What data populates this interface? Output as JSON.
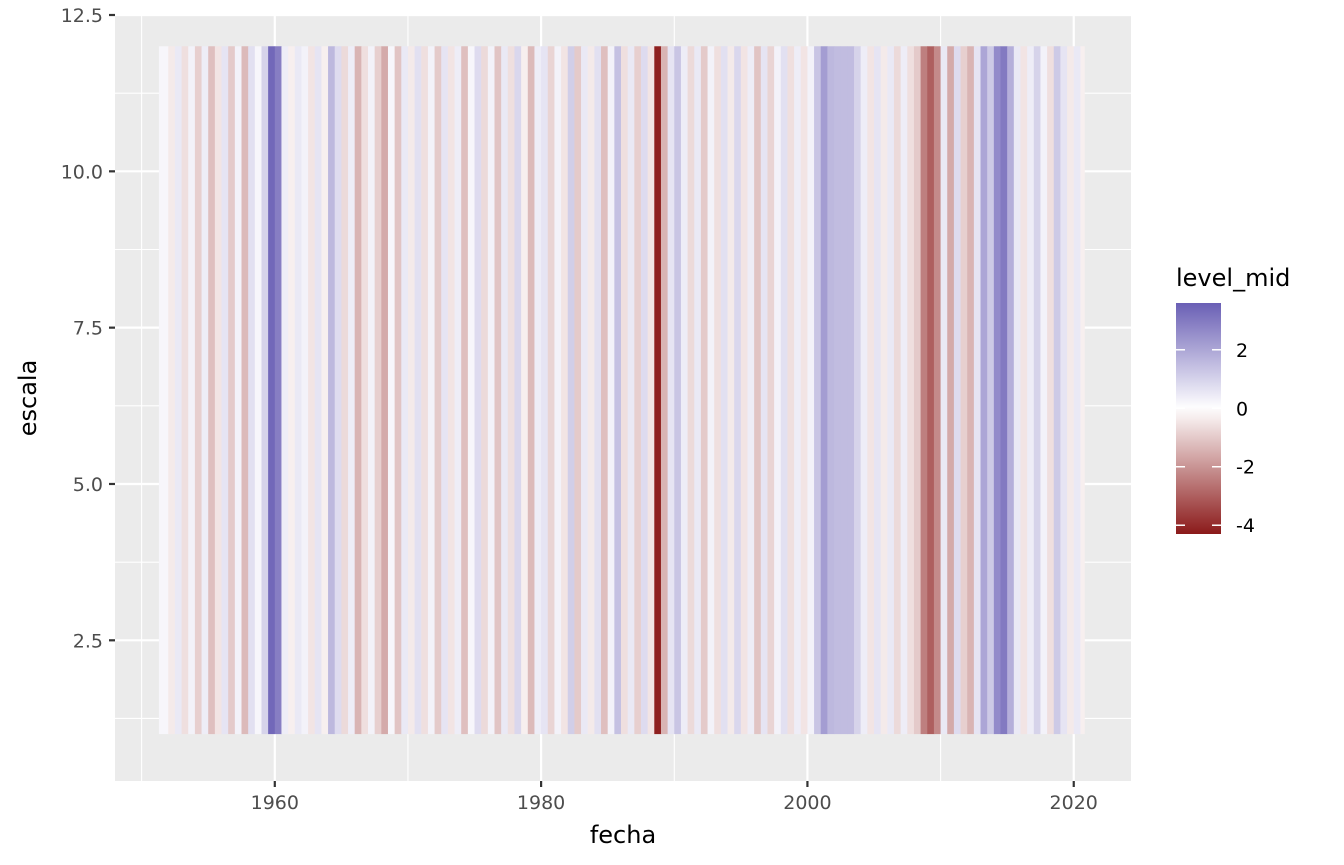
{
  "chart_data": {
    "type": "heatmap",
    "title": "",
    "xlabel": "fecha",
    "ylabel": "escala",
    "xlim": [
      1948.0,
      2024.3
    ],
    "ylim": [
      0.25,
      12.5
    ],
    "x_ticks": [
      {
        "value": 1960,
        "label": "1960"
      },
      {
        "value": 1980,
        "label": "1980"
      },
      {
        "value": 2000,
        "label": "2000"
      },
      {
        "value": 2020,
        "label": "2020"
      }
    ],
    "y_ticks": [
      {
        "value": 2.5,
        "label": "2.5"
      },
      {
        "value": 5.0,
        "label": "5.0"
      },
      {
        "value": 7.5,
        "label": "7.5"
      },
      {
        "value": 10.0,
        "label": "10.0"
      },
      {
        "value": 12.5,
        "label": "12.5"
      }
    ],
    "grid": true,
    "x_range_data": [
      1951.3,
      2020.8
    ],
    "y_range_data": [
      1.0,
      12.0
    ],
    "legend": {
      "title": "level_mid",
      "position": "right",
      "range": [
        -4.3,
        3.6
      ],
      "ticks": [
        {
          "value": 2,
          "label": "2"
        },
        {
          "value": 0,
          "label": "0"
        },
        {
          "value": -2,
          "label": "-2"
        },
        {
          "value": -4,
          "label": "-4"
        }
      ],
      "colors": {
        "low": "#8b1a1a",
        "mid": "#ffffff",
        "high": "#6a5fb5"
      }
    },
    "bands": [
      {
        "x": 1951.3,
        "v": 0.2
      },
      {
        "x": 1952.0,
        "v": -0.4
      },
      {
        "x": 1952.5,
        "v": 0.5
      },
      {
        "x": 1953.0,
        "v": -0.6
      },
      {
        "x": 1953.5,
        "v": 0.3
      },
      {
        "x": 1954.0,
        "v": -0.9
      },
      {
        "x": 1954.5,
        "v": 0.4
      },
      {
        "x": 1955.0,
        "v": -1.2
      },
      {
        "x": 1955.5,
        "v": -0.5
      },
      {
        "x": 1956.0,
        "v": 0.6
      },
      {
        "x": 1956.5,
        "v": -1.0
      },
      {
        "x": 1957.0,
        "v": 0.3
      },
      {
        "x": 1957.5,
        "v": -1.3
      },
      {
        "x": 1958.0,
        "v": 0.7
      },
      {
        "x": 1958.5,
        "v": 0.2
      },
      {
        "x": 1959.0,
        "v": 1.0
      },
      {
        "x": 1959.5,
        "v": 3.4
      },
      {
        "x": 1960.0,
        "v": 2.9
      },
      {
        "x": 1960.5,
        "v": 0.4
      },
      {
        "x": 1961.0,
        "v": -0.3
      },
      {
        "x": 1961.5,
        "v": 0.5
      },
      {
        "x": 1962.0,
        "v": 0.3
      },
      {
        "x": 1962.5,
        "v": -0.5
      },
      {
        "x": 1963.0,
        "v": 0.6
      },
      {
        "x": 1963.5,
        "v": -0.3
      },
      {
        "x": 1964.0,
        "v": 1.6
      },
      {
        "x": 1964.5,
        "v": 0.8
      },
      {
        "x": 1965.0,
        "v": -0.7
      },
      {
        "x": 1965.5,
        "v": 0.4
      },
      {
        "x": 1966.0,
        "v": -1.4
      },
      {
        "x": 1966.5,
        "v": -0.6
      },
      {
        "x": 1967.0,
        "v": 0.3
      },
      {
        "x": 1967.5,
        "v": -0.9
      },
      {
        "x": 1968.0,
        "v": -1.6
      },
      {
        "x": 1968.5,
        "v": 0.2
      },
      {
        "x": 1969.0,
        "v": -1.1
      },
      {
        "x": 1969.5,
        "v": 0.5
      },
      {
        "x": 1970.0,
        "v": -0.4
      },
      {
        "x": 1970.5,
        "v": 0.7
      },
      {
        "x": 1971.0,
        "v": -0.6
      },
      {
        "x": 1971.5,
        "v": 0.3
      },
      {
        "x": 1972.0,
        "v": -1.0
      },
      {
        "x": 1972.5,
        "v": 0.6
      },
      {
        "x": 1973.0,
        "v": -0.5
      },
      {
        "x": 1973.5,
        "v": 0.4
      },
      {
        "x": 1974.0,
        "v": -1.2
      },
      {
        "x": 1974.5,
        "v": 0.2
      },
      {
        "x": 1975.0,
        "v": 0.8
      },
      {
        "x": 1975.5,
        "v": -0.7
      },
      {
        "x": 1976.0,
        "v": 0.3
      },
      {
        "x": 1976.5,
        "v": -1.1
      },
      {
        "x": 1977.0,
        "v": 0.5
      },
      {
        "x": 1977.5,
        "v": -0.6
      },
      {
        "x": 1978.0,
        "v": 0.9
      },
      {
        "x": 1978.5,
        "v": -0.3
      },
      {
        "x": 1979.0,
        "v": -1.3
      },
      {
        "x": 1979.5,
        "v": 0.4
      },
      {
        "x": 1980.0,
        "v": 0.6
      },
      {
        "x": 1980.5,
        "v": -0.8
      },
      {
        "x": 1981.0,
        "v": 0.3
      },
      {
        "x": 1981.5,
        "v": -0.5
      },
      {
        "x": 1982.0,
        "v": 1.1
      },
      {
        "x": 1982.5,
        "v": -1.0
      },
      {
        "x": 1983.0,
        "v": 0.5
      },
      {
        "x": 1983.5,
        "v": -0.4
      },
      {
        "x": 1984.0,
        "v": 0.7
      },
      {
        "x": 1984.5,
        "v": -1.2
      },
      {
        "x": 1985.0,
        "v": 0.3
      },
      {
        "x": 1985.5,
        "v": 1.4
      },
      {
        "x": 1986.0,
        "v": -0.6
      },
      {
        "x": 1986.5,
        "v": 0.5
      },
      {
        "x": 1987.0,
        "v": -0.9
      },
      {
        "x": 1987.5,
        "v": 0.8
      },
      {
        "x": 1988.0,
        "v": -0.5
      },
      {
        "x": 1988.5,
        "v": -4.2
      },
      {
        "x": 1989.0,
        "v": -1.4
      },
      {
        "x": 1989.5,
        "v": 0.6
      },
      {
        "x": 1990.0,
        "v": 1.3
      },
      {
        "x": 1990.5,
        "v": 0.4
      },
      {
        "x": 1991.0,
        "v": -0.7
      },
      {
        "x": 1991.5,
        "v": 0.5
      },
      {
        "x": 1992.0,
        "v": -1.0
      },
      {
        "x": 1992.5,
        "v": 0.3
      },
      {
        "x": 1993.0,
        "v": -0.6
      },
      {
        "x": 1993.5,
        "v": 0.7
      },
      {
        "x": 1994.0,
        "v": -0.4
      },
      {
        "x": 1994.5,
        "v": 0.9
      },
      {
        "x": 1995.0,
        "v": -0.5
      },
      {
        "x": 1995.5,
        "v": 0.4
      },
      {
        "x": 1996.0,
        "v": -1.1
      },
      {
        "x": 1996.5,
        "v": 0.6
      },
      {
        "x": 1997.0,
        "v": -0.8
      },
      {
        "x": 1997.5,
        "v": 0.3
      },
      {
        "x": 1998.0,
        "v": 0.7
      },
      {
        "x": 1998.5,
        "v": -0.6
      },
      {
        "x": 1999.0,
        "v": 0.4
      },
      {
        "x": 1999.5,
        "v": -0.5
      },
      {
        "x": 2000.0,
        "v": 0.3
      },
      {
        "x": 2000.5,
        "v": 1.3
      },
      {
        "x": 2001.0,
        "v": 2.2
      },
      {
        "x": 2001.5,
        "v": 1.6
      },
      {
        "x": 2002.0,
        "v": 1.5
      },
      {
        "x": 2002.5,
        "v": 1.5
      },
      {
        "x": 2003.0,
        "v": 1.5
      },
      {
        "x": 2003.5,
        "v": 1.0
      },
      {
        "x": 2004.0,
        "v": 0.4
      },
      {
        "x": 2004.5,
        "v": -0.5
      },
      {
        "x": 2005.0,
        "v": 0.6
      },
      {
        "x": 2005.5,
        "v": -0.4
      },
      {
        "x": 2006.0,
        "v": 0.5
      },
      {
        "x": 2006.5,
        "v": -0.7
      },
      {
        "x": 2007.0,
        "v": 0.4
      },
      {
        "x": 2007.5,
        "v": -0.6
      },
      {
        "x": 2008.0,
        "v": -1.0
      },
      {
        "x": 2008.5,
        "v": -2.4
      },
      {
        "x": 2009.0,
        "v": -3.0
      },
      {
        "x": 2009.5,
        "v": -2.2
      },
      {
        "x": 2010.0,
        "v": 0.5
      },
      {
        "x": 2010.5,
        "v": -1.6
      },
      {
        "x": 2011.0,
        "v": 0.8
      },
      {
        "x": 2011.5,
        "v": -0.9
      },
      {
        "x": 2012.0,
        "v": -1.4
      },
      {
        "x": 2012.5,
        "v": 0.6
      },
      {
        "x": 2013.0,
        "v": 2.0
      },
      {
        "x": 2013.5,
        "v": 1.2
      },
      {
        "x": 2014.0,
        "v": 2.6
      },
      {
        "x": 2014.5,
        "v": 3.0
      },
      {
        "x": 2015.0,
        "v": 1.8
      },
      {
        "x": 2015.5,
        "v": 0.5
      },
      {
        "x": 2016.0,
        "v": -0.5
      },
      {
        "x": 2016.5,
        "v": 0.4
      },
      {
        "x": 2017.0,
        "v": 1.0
      },
      {
        "x": 2017.5,
        "v": 0.3
      },
      {
        "x": 2018.0,
        "v": -0.6
      },
      {
        "x": 2018.5,
        "v": 1.2
      },
      {
        "x": 2019.0,
        "v": 0.6
      },
      {
        "x": 2019.5,
        "v": -0.4
      },
      {
        "x": 2020.0,
        "v": 0.5
      },
      {
        "x": 2020.5,
        "v": -0.3
      }
    ]
  }
}
